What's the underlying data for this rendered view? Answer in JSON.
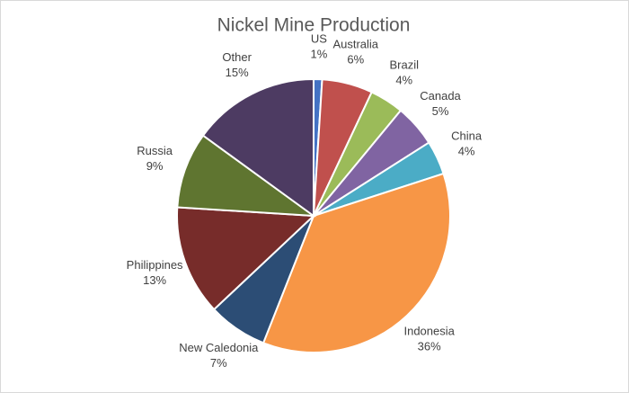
{
  "chart_data": {
    "type": "pie",
    "title": "Nickel Mine Production",
    "categories": [
      "US",
      "Australia",
      "Brazil",
      "Canada",
      "China",
      "Indonesia",
      "New Caledonia",
      "Philippines",
      "Russia",
      "Other"
    ],
    "values": [
      1,
      6,
      4,
      5,
      4,
      36,
      7,
      13,
      9,
      15
    ],
    "value_labels": [
      "1%",
      "6%",
      "4%",
      "5%",
      "4%",
      "36%",
      "7%",
      "13%",
      "9%",
      "15%"
    ],
    "colors": [
      "#4472c4",
      "#c0504d",
      "#9bbb59",
      "#8064a2",
      "#4bacc6",
      "#f79646",
      "#2c4d75",
      "#772c2a",
      "#5f7530",
      "#4d3b62"
    ]
  }
}
